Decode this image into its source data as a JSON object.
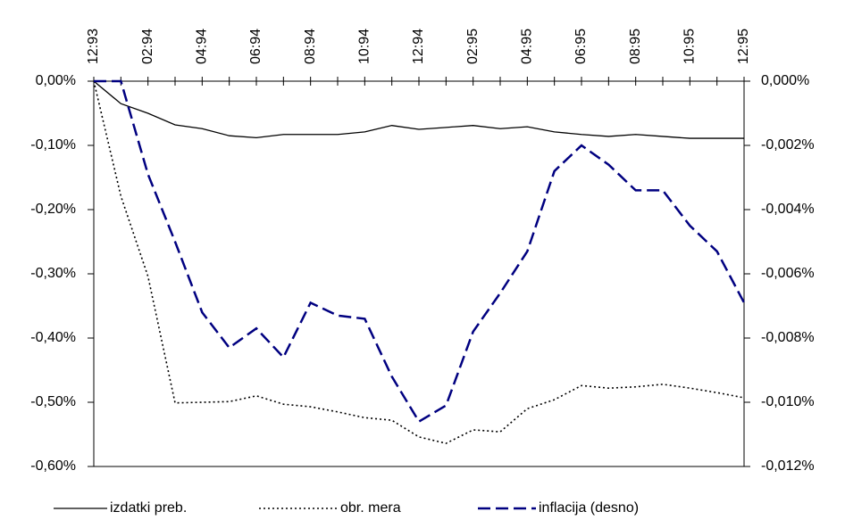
{
  "chart_data": {
    "type": "line",
    "categories": [
      "12:93",
      null,
      "02:94",
      null,
      "04:94",
      null,
      "06:94",
      null,
      "08:94",
      null,
      "10:94",
      null,
      "12:94",
      null,
      "02:95",
      null,
      "04:95",
      null,
      "06:95",
      null,
      "08:95",
      null,
      "10:95",
      null,
      "12:95"
    ],
    "series": [
      {
        "name": "izdatki preb.",
        "color": "#000000",
        "values": [
          0,
          -0.035,
          -0.05,
          -0.068,
          -0.074,
          -0.085,
          -0.088,
          -0.083,
          -0.083,
          -0.083,
          -0.079,
          -0.069,
          -0.075,
          -0.072,
          -0.069,
          -0.074,
          -0.071,
          -0.079,
          -0.083,
          -0.086,
          -0.083,
          -0.086,
          -0.089,
          -0.089,
          -0.089
        ]
      },
      {
        "name": "obr. mera",
        "color": "#000000",
        "values": [
          0,
          -0.179,
          -0.304,
          -0.501,
          -0.5,
          -0.499,
          -0.49,
          -0.503,
          -0.507,
          -0.515,
          -0.524,
          -0.528,
          -0.554,
          -0.564,
          -0.543,
          -0.546,
          -0.51,
          -0.496,
          -0.474,
          -0.478,
          -0.476,
          -0.472,
          -0.478,
          -0.485,
          -0.493
        ]
      },
      {
        "name": "inflacija (desno)",
        "color": "#000080",
        "axis": "y2",
        "values": [
          0,
          0,
          -0.0029,
          -0.005,
          -0.0072,
          -0.0083,
          -0.0077,
          -0.0086,
          -0.0069,
          -0.0073,
          -0.0074,
          -0.0092,
          -0.0106,
          -0.0101,
          -0.0078,
          -0.0066,
          -0.0053,
          -0.0028,
          -0.002,
          -0.0026,
          -0.0034,
          -0.0034,
          -0.0045,
          -0.0053,
          -0.0069
        ]
      }
    ],
    "ylim": [
      -0.6,
      0
    ],
    "yticks": [
      {
        "value": 0,
        "label": "0,00%"
      },
      {
        "value": -0.1,
        "label": "-0,10%"
      },
      {
        "value": -0.2,
        "label": "-0,20%"
      },
      {
        "value": -0.3,
        "label": "-0,30%"
      },
      {
        "value": -0.4,
        "label": "-0,40%"
      },
      {
        "value": -0.5,
        "label": "-0,50%"
      },
      {
        "value": -0.6,
        "label": "-0,60%"
      }
    ],
    "y2lim": [
      -0.012,
      0
    ],
    "y2ticks": [
      {
        "value": 0,
        "label": "0,000%"
      },
      {
        "value": -0.002,
        "label": "-0,002%"
      },
      {
        "value": -0.004,
        "label": "-0,004%"
      },
      {
        "value": -0.006,
        "label": "-0,006%"
      },
      {
        "value": -0.008,
        "label": "-0,008%"
      },
      {
        "value": -0.01,
        "label": "-0,010%"
      },
      {
        "value": -0.012,
        "label": "-0,012%"
      }
    ],
    "legend": "bottom"
  }
}
